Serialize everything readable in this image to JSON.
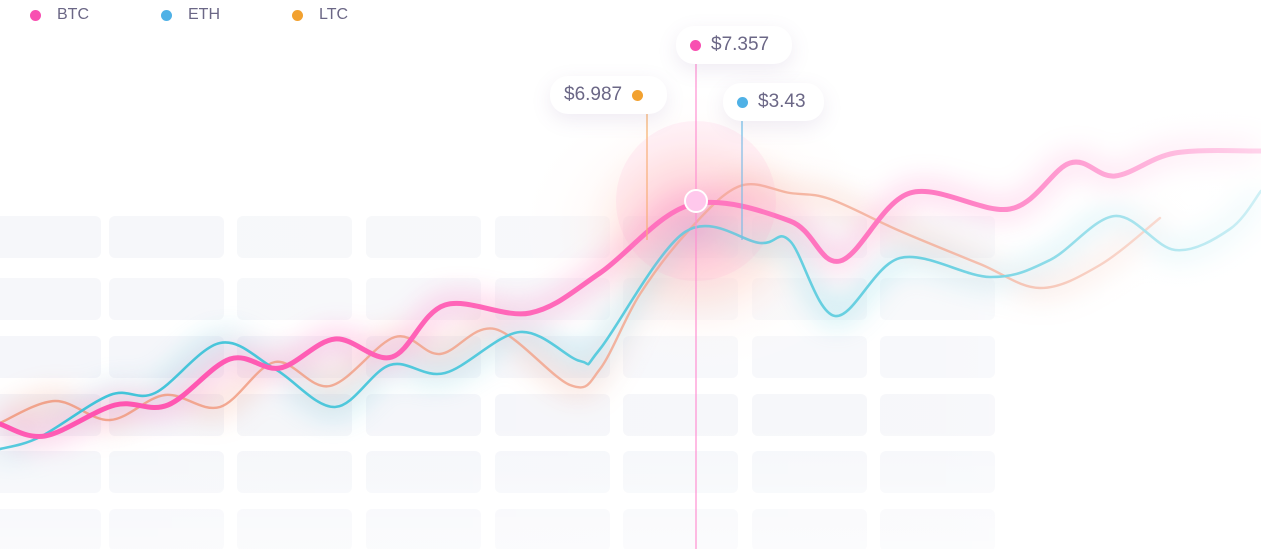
{
  "legend": {
    "items": [
      {
        "label": "BTC",
        "color": "#f84fb1"
      },
      {
        "label": "ETH",
        "color": "#4fb1e6"
      },
      {
        "label": "LTC",
        "color": "#f2a12f"
      }
    ]
  },
  "tooltips": {
    "btc": {
      "value": "$7.357",
      "color": "#f84fb1"
    },
    "ltc": {
      "value": "$6.987",
      "color": "#f2a12f"
    },
    "eth": {
      "value": "$3.43",
      "color": "#4fb1e6"
    }
  },
  "chart_data": {
    "type": "line",
    "title": "",
    "xlabel": "",
    "ylabel": "",
    "grid": false,
    "legend_position": "top-left",
    "ylim": [
      0,
      549
    ],
    "series": [
      {
        "name": "BTC",
        "color": "#f84fb1",
        "x": [
          0,
          45,
          115,
          168,
          230,
          280,
          335,
          392,
          445,
          530,
          600,
          690,
          790,
          840,
          910,
          1010,
          1070,
          1115,
          1175,
          1261
        ],
        "values": [
          125,
          113,
          144,
          144,
          190,
          181,
          210,
          192,
          244,
          236,
          276,
          344,
          328,
          288,
          356,
          340,
          386,
          373,
          396,
          398
        ]
      },
      {
        "name": "ETH",
        "color": "#4fb1e6",
        "x": [
          0,
          40,
          110,
          155,
          220,
          275,
          335,
          390,
          445,
          520,
          580,
          600,
          685,
          760,
          790,
          835,
          900,
          990,
          1050,
          1115,
          1175,
          1230,
          1261
        ],
        "values": [
          100,
          112,
          154,
          156,
          206,
          180,
          142,
          184,
          176,
          217,
          188,
          200,
          317,
          306,
          308,
          233,
          291,
          272,
          289,
          333,
          299,
          320,
          358
        ]
      },
      {
        "name": "LTC",
        "color": "#f2a12f",
        "x": [
          0,
          55,
          110,
          165,
          220,
          275,
          330,
          395,
          440,
          495,
          570,
          600,
          640,
          690,
          740,
          790,
          830,
          900,
          980,
          1040,
          1100,
          1160
        ],
        "values": [
          126,
          148,
          129,
          154,
          142,
          187,
          163,
          212,
          195,
          220,
          164,
          180,
          255,
          320,
          363,
          356,
          350,
          318,
          285,
          261,
          284,
          331
        ]
      }
    ]
  }
}
